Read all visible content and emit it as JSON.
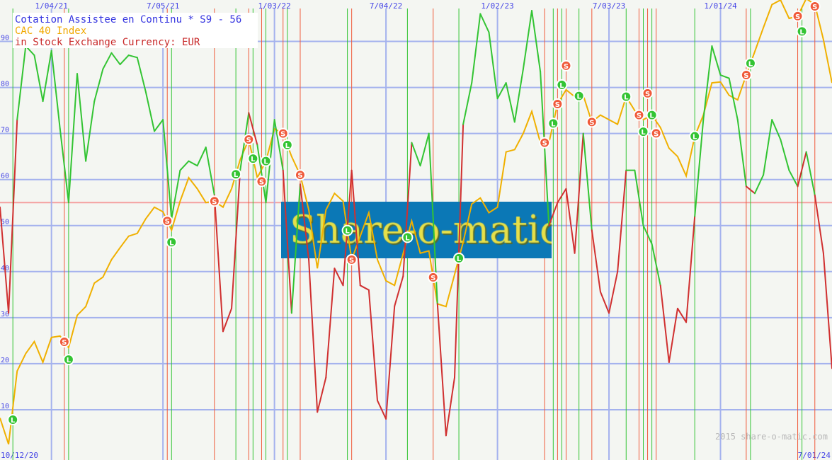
{
  "chart_data": {
    "type": "line",
    "legend": {
      "placement": "top-left",
      "lines": [
        {
          "text": "Cotation Assistee en Continu * S9 - 56",
          "color": "#3535e0"
        },
        {
          "text": "CAC 40 Index",
          "color": "#f0a800"
        },
        {
          "text": "in Stock Exchange Currency: EUR",
          "color": "#c82828"
        }
      ]
    },
    "x_range": [
      "2020-10-12",
      "2024-07-01"
    ],
    "ylim": [
      0,
      99
    ],
    "y_ticks": [
      10,
      20,
      30,
      40,
      50,
      60,
      70,
      80,
      90
    ],
    "x_tick_labels": [
      {
        "date": "2021-01-04",
        "label": "1/04/21"
      },
      {
        "date": "2021-07-05",
        "label": "7/05/21"
      },
      {
        "date": "2022-01-03",
        "label": "1/03/22"
      },
      {
        "date": "2022-07-04",
        "label": "7/04/22"
      },
      {
        "date": "2023-01-02",
        "label": "1/02/23"
      },
      {
        "date": "2023-07-03",
        "label": "7/03/23"
      },
      {
        "date": "2024-01-01",
        "label": "1/01/24"
      }
    ],
    "start_label": "10/12/20",
    "end_label": "7/01/24",
    "grid": true,
    "reference_line": 55,
    "x": [
      "2020-10-12",
      "2020-10-26",
      "2020-11-09",
      "2020-11-23",
      "2020-12-07",
      "2020-12-21",
      "2021-01-04",
      "2021-01-18",
      "2021-02-01",
      "2021-02-15",
      "2021-03-01",
      "2021-03-15",
      "2021-03-29",
      "2021-04-12",
      "2021-04-26",
      "2021-05-10",
      "2021-05-24",
      "2021-06-07",
      "2021-06-21",
      "2021-07-05",
      "2021-07-19",
      "2021-08-02",
      "2021-08-16",
      "2021-08-30",
      "2021-09-13",
      "2021-09-27",
      "2021-10-11",
      "2021-10-25",
      "2021-11-08",
      "2021-11-22",
      "2021-12-06",
      "2021-12-20",
      "2022-01-03",
      "2022-01-17",
      "2022-01-31",
      "2022-02-14",
      "2022-02-28",
      "2022-03-14",
      "2022-03-28",
      "2022-04-11",
      "2022-04-25",
      "2022-05-09",
      "2022-05-23",
      "2022-06-06",
      "2022-06-20",
      "2022-07-04",
      "2022-07-18",
      "2022-08-01",
      "2022-08-15",
      "2022-08-29",
      "2022-09-12",
      "2022-09-26",
      "2022-10-10",
      "2022-10-24",
      "2022-11-07",
      "2022-11-21",
      "2022-12-05",
      "2022-12-19",
      "2023-01-02",
      "2023-01-16",
      "2023-01-30",
      "2023-02-13",
      "2023-02-27",
      "2023-03-13",
      "2023-03-27",
      "2023-04-10",
      "2023-04-24",
      "2023-05-08",
      "2023-05-22",
      "2023-06-05",
      "2023-06-19",
      "2023-07-03",
      "2023-07-17",
      "2023-07-31",
      "2023-08-14",
      "2023-08-28",
      "2023-09-11",
      "2023-09-25",
      "2023-10-09",
      "2023-10-23",
      "2023-11-06",
      "2023-11-20",
      "2023-12-04",
      "2023-12-18",
      "2024-01-01",
      "2024-01-15",
      "2024-01-29",
      "2024-02-12",
      "2024-02-26",
      "2024-03-11",
      "2024-03-25",
      "2024-04-08",
      "2024-04-22",
      "2024-05-06",
      "2024-05-20",
      "2024-06-03",
      "2024-06-17",
      "2024-07-01"
    ],
    "series": [
      {
        "role": "stock",
        "colors": {
          "long": "#33c433",
          "short": "#d03030"
        },
        "values": [
          54,
          31,
          73,
          89,
          87,
          77,
          88,
          71,
          55,
          83,
          64,
          77,
          84,
          87.5,
          85,
          87,
          86.5,
          79,
          70.5,
          73,
          51.5,
          62,
          64,
          63,
          67,
          56.6,
          27,
          32,
          62,
          74.5,
          67.5,
          55,
          73,
          62,
          31,
          59,
          42.6,
          9.5,
          17,
          40.7,
          37,
          62,
          37,
          36,
          12,
          8,
          32.5,
          39,
          68,
          63,
          70,
          33,
          4.4,
          17,
          72,
          81,
          96,
          92,
          77.6,
          81,
          72.5,
          84,
          96.7,
          83.4,
          50,
          55,
          58,
          44,
          70,
          49,
          35.6,
          31,
          40,
          62,
          62,
          50,
          46,
          37,
          20.3,
          32,
          29,
          52,
          73,
          89,
          82.7,
          82,
          73,
          58.5,
          57,
          61,
          73,
          68.7,
          62,
          58.5,
          66,
          56.6,
          44,
          19
        ]
      },
      {
        "role": "index",
        "color": "#f0b000",
        "values": [
          8.2,
          2.5,
          18.4,
          22.2,
          24.8,
          20.3,
          25.7,
          26,
          23.5,
          30.5,
          32.4,
          37.5,
          38.8,
          42.6,
          45.2,
          47.7,
          48.3,
          51.5,
          54,
          53,
          49,
          55.3,
          60.4,
          58,
          55,
          55.3,
          54,
          58,
          64.3,
          68.7,
          60.4,
          64,
          71,
          70,
          65,
          61,
          53.4,
          40.7,
          53.4,
          57,
          55.3,
          42.6,
          47.7,
          52.8,
          42.6,
          38,
          37,
          43.9,
          51,
          44,
          44.5,
          33,
          32.4,
          39.4,
          46.4,
          54.7,
          56,
          52.8,
          54,
          66,
          66.5,
          70,
          74.8,
          68,
          68,
          76.4,
          79.5,
          78,
          78.3,
          72.5,
          74,
          73,
          72,
          78,
          75,
          73,
          74,
          71.3,
          66.8,
          65,
          60.8,
          69.4,
          74,
          81,
          81.2,
          78.3,
          77.3,
          82.7,
          87.8,
          93,
          98,
          99,
          95,
          95.5,
          99.3,
          98,
          90.4,
          81
        ]
      }
    ],
    "signals": [
      {
        "date": "2020-11-02",
        "type": "L"
      },
      {
        "date": "2021-01-25",
        "type": "S"
      },
      {
        "date": "2021-02-01",
        "type": "L"
      },
      {
        "date": "2021-07-12",
        "type": "S"
      },
      {
        "date": "2021-07-19",
        "type": "L"
      },
      {
        "date": "2021-09-27",
        "type": "S"
      },
      {
        "date": "2021-11-01",
        "type": "L"
      },
      {
        "date": "2021-11-22",
        "type": "S"
      },
      {
        "date": "2021-11-29",
        "type": "L"
      },
      {
        "date": "2021-12-13",
        "type": "S"
      },
      {
        "date": "2021-12-20",
        "type": "L"
      },
      {
        "date": "2022-01-17",
        "type": "S"
      },
      {
        "date": "2022-01-24",
        "type": "L"
      },
      {
        "date": "2022-02-14",
        "type": "S"
      },
      {
        "date": "2022-05-02",
        "type": "L"
      },
      {
        "date": "2022-05-09",
        "type": "S"
      },
      {
        "date": "2022-08-08",
        "type": "L"
      },
      {
        "date": "2022-09-19",
        "type": "S"
      },
      {
        "date": "2022-10-31",
        "type": "L"
      },
      {
        "date": "2023-03-20",
        "type": "S"
      },
      {
        "date": "2023-04-03",
        "type": "L"
      },
      {
        "date": "2023-04-10",
        "type": "S"
      },
      {
        "date": "2023-04-17",
        "type": "L"
      },
      {
        "date": "2023-04-24",
        "type": "S"
      },
      {
        "date": "2023-05-15",
        "type": "L"
      },
      {
        "date": "2023-06-05",
        "type": "S"
      },
      {
        "date": "2023-07-31",
        "type": "L"
      },
      {
        "date": "2023-08-21",
        "type": "S"
      },
      {
        "date": "2023-08-28",
        "type": "L"
      },
      {
        "date": "2023-09-04",
        "type": "S"
      },
      {
        "date": "2023-09-11",
        "type": "L"
      },
      {
        "date": "2023-09-18",
        "type": "S"
      },
      {
        "date": "2023-11-20",
        "type": "L"
      },
      {
        "date": "2024-02-12",
        "type": "S"
      },
      {
        "date": "2024-02-19",
        "type": "L"
      },
      {
        "date": "2024-05-06",
        "type": "S"
      },
      {
        "date": "2024-05-13",
        "type": "L"
      },
      {
        "date": "2024-06-03",
        "type": "S"
      }
    ],
    "signal_colors": {
      "L": "#33c433",
      "S": "#f05a3a"
    },
    "grid_color": "#a4b2ee",
    "reference_color": "#f4a0a0"
  },
  "watermark": "Share-o-matic",
  "copyright": "2015 share-o-matic.com"
}
